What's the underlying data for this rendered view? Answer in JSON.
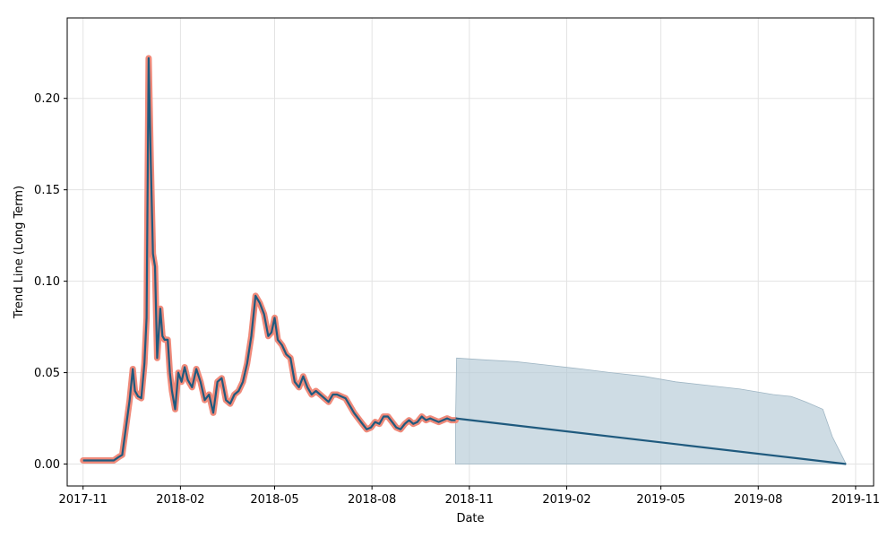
{
  "chart_data": {
    "type": "line",
    "xlabel": "Date",
    "ylabel": "Trend Line (Long Term)",
    "xlim": [
      "2017-10-17",
      "2019-11-18"
    ],
    "ylim": [
      -0.012,
      0.244
    ],
    "grid": true,
    "x_ticks": [
      "2017-11",
      "2018-02",
      "2018-05",
      "2018-08",
      "2018-11",
      "2019-02",
      "2019-05",
      "2019-08",
      "2019-11"
    ],
    "y_ticks": [
      "0.00",
      "0.05",
      "0.10",
      "0.15",
      "0.20"
    ],
    "colors": {
      "highlight": "#f08a7a",
      "trend": "#1f5a7e",
      "band_fill": "#b4c9d6",
      "band_edge": "#9fb6c4",
      "grid": "#e3e3e3"
    },
    "history": {
      "x": [
        "2017-11-01",
        "2017-11-10",
        "2017-11-20",
        "2017-11-30",
        "2017-12-05",
        "2017-12-08",
        "2017-12-11",
        "2017-12-15",
        "2017-12-18",
        "2017-12-20",
        "2017-12-23",
        "2017-12-26",
        "2017-12-29",
        "2017-12-31",
        "2018-01-02",
        "2018-01-04",
        "2018-01-06",
        "2018-01-08",
        "2018-01-10",
        "2018-01-13",
        "2018-01-15",
        "2018-01-17",
        "2018-01-20",
        "2018-01-22",
        "2018-01-24",
        "2018-01-27",
        "2018-01-30",
        "2018-02-02",
        "2018-02-05",
        "2018-02-08",
        "2018-02-12",
        "2018-02-16",
        "2018-02-20",
        "2018-02-24",
        "2018-02-28",
        "2018-03-04",
        "2018-03-08",
        "2018-03-12",
        "2018-03-16",
        "2018-03-20",
        "2018-03-24",
        "2018-03-28",
        "2018-04-01",
        "2018-04-05",
        "2018-04-09",
        "2018-04-13",
        "2018-04-17",
        "2018-04-21",
        "2018-04-25",
        "2018-04-28",
        "2018-05-01",
        "2018-05-04",
        "2018-05-08",
        "2018-05-12",
        "2018-05-16",
        "2018-05-20",
        "2018-05-24",
        "2018-05-28",
        "2018-06-01",
        "2018-06-05",
        "2018-06-09",
        "2018-06-13",
        "2018-06-17",
        "2018-06-21",
        "2018-06-25",
        "2018-06-29",
        "2018-07-03",
        "2018-07-07",
        "2018-07-11",
        "2018-07-15",
        "2018-07-19",
        "2018-07-23",
        "2018-07-27",
        "2018-07-31",
        "2018-08-04",
        "2018-08-08",
        "2018-08-12",
        "2018-08-16",
        "2018-08-20",
        "2018-08-24",
        "2018-08-28",
        "2018-09-01",
        "2018-09-05",
        "2018-09-09",
        "2018-09-13",
        "2018-09-17",
        "2018-09-21",
        "2018-09-25",
        "2018-09-29",
        "2018-10-03",
        "2018-10-07",
        "2018-10-11",
        "2018-10-15",
        "2018-10-19"
      ],
      "y": [
        0.002,
        0.002,
        0.002,
        0.002,
        0.004,
        0.005,
        0.018,
        0.035,
        0.052,
        0.04,
        0.037,
        0.036,
        0.055,
        0.08,
        0.222,
        0.165,
        0.115,
        0.108,
        0.058,
        0.085,
        0.07,
        0.068,
        0.068,
        0.05,
        0.04,
        0.03,
        0.05,
        0.045,
        0.053,
        0.046,
        0.042,
        0.052,
        0.045,
        0.035,
        0.038,
        0.028,
        0.045,
        0.047,
        0.035,
        0.033,
        0.038,
        0.04,
        0.045,
        0.055,
        0.07,
        0.092,
        0.088,
        0.082,
        0.07,
        0.072,
        0.08,
        0.068,
        0.065,
        0.06,
        0.058,
        0.045,
        0.042,
        0.048,
        0.042,
        0.038,
        0.04,
        0.038,
        0.036,
        0.034,
        0.038,
        0.038,
        0.037,
        0.036,
        0.032,
        0.028,
        0.025,
        0.022,
        0.019,
        0.02,
        0.023,
        0.022,
        0.026,
        0.026,
        0.023,
        0.02,
        0.019,
        0.022,
        0.024,
        0.022,
        0.023,
        0.026,
        0.024,
        0.025,
        0.024,
        0.023,
        0.024,
        0.025,
        0.024,
        0.024
      ]
    },
    "forecast": {
      "x": [
        "2018-10-19",
        "2019-10-23"
      ],
      "y": [
        0.025,
        0.0
      ]
    },
    "band": {
      "x": [
        "2018-10-19",
        "2018-10-20",
        "2018-11-15",
        "2018-12-15",
        "2019-01-15",
        "2019-02-15",
        "2019-03-15",
        "2019-04-15",
        "2019-05-15",
        "2019-06-15",
        "2019-07-15",
        "2019-08-15",
        "2019-09-01",
        "2019-09-15",
        "2019-10-01",
        "2019-10-10",
        "2019-10-23"
      ],
      "upper": [
        0.025,
        0.058,
        0.057,
        0.056,
        0.054,
        0.052,
        0.05,
        0.048,
        0.045,
        0.043,
        0.041,
        0.038,
        0.037,
        0.034,
        0.03,
        0.015,
        0.0
      ],
      "lower": [
        0.0,
        0.0,
        0.0,
        0.0,
        0.0,
        0.0,
        0.0,
        0.0,
        0.0,
        0.0,
        0.0,
        0.0,
        0.0,
        0.0,
        0.0,
        0.0,
        0.0
      ]
    }
  }
}
